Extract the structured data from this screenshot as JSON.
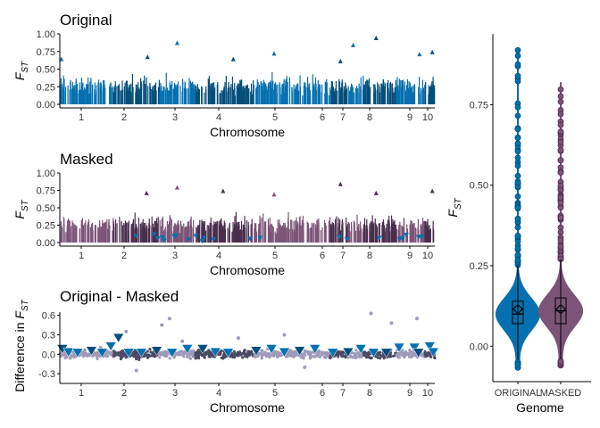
{
  "colors": {
    "original_dark": "#034e7b",
    "original_light": "#0570b0",
    "masked_dark": "#4a2e4d",
    "masked_light": "#7c5478",
    "diff_dark": "#4a4a64",
    "diff_light": "#9f9ab9",
    "axis": "#000000"
  },
  "chart_data": [
    {
      "type": "scatter",
      "panel": "manhattan",
      "title": "Original",
      "xlabel": "Chromosome",
      "ylabel_main": "F",
      "ylabel_sub": "ST",
      "ylim": [
        0,
        1
      ],
      "yticks": [
        "0.00",
        "0.25",
        "0.50",
        "0.75",
        "1.00"
      ],
      "yticks_values": [
        0,
        0.25,
        0.5,
        0.75,
        1.0
      ],
      "chromosomes": [
        "1",
        "2",
        "3",
        "4",
        "5",
        "6",
        "7",
        "8",
        "9",
        "10"
      ],
      "chromosome_bounds": [
        [
          0,
          10.5
        ],
        [
          10.5,
          19.5
        ],
        [
          19.5,
          26.5
        ],
        [
          26.5,
          38
        ],
        [
          38,
          53
        ],
        [
          53,
          56.5
        ],
        [
          56.5,
          59.5
        ],
        [
          59.5,
          66
        ],
        [
          66,
          71.5
        ],
        [
          71.5,
          73.5
        ]
      ],
      "peaks": [
        {
          "chr": "1",
          "pos": 0.3,
          "fst": 0.65
        },
        {
          "chr": "2",
          "pos": 17.2,
          "fst": 0.68
        },
        {
          "chr": "3",
          "pos": 23.0,
          "fst": 0.88
        },
        {
          "chr": "4",
          "pos": 34.0,
          "fst": 0.65
        },
        {
          "chr": "5",
          "pos": 42.0,
          "fst": 0.73
        },
        {
          "chr": "6",
          "pos": 55.0,
          "fst": 0.62
        },
        {
          "chr": "7",
          "pos": 57.5,
          "fst": 0.85
        },
        {
          "chr": "8",
          "pos": 62.0,
          "fst": 0.95
        },
        {
          "chr": "9",
          "pos": 70.5,
          "fst": 0.72
        },
        {
          "chr": "10",
          "pos": 73.0,
          "fst": 0.75
        }
      ]
    },
    {
      "type": "scatter",
      "panel": "manhattan",
      "title": "Masked",
      "xlabel": "Chromosome",
      "ylabel_main": "F",
      "ylabel_sub": "ST",
      "ylim": [
        0,
        1
      ],
      "yticks": [
        "0.00",
        "0.25",
        "0.50",
        "0.75",
        "1.00"
      ],
      "yticks_values": [
        0,
        0.25,
        0.5,
        0.75,
        1.0
      ],
      "chromosomes": [
        "1",
        "2",
        "3",
        "4",
        "5",
        "6",
        "7",
        "8",
        "9",
        "10"
      ],
      "chromosome_bounds": [
        [
          0,
          10.5
        ],
        [
          10.5,
          19.5
        ],
        [
          19.5,
          26.5
        ],
        [
          26.5,
          38
        ],
        [
          38,
          53
        ],
        [
          53,
          56.5
        ],
        [
          56.5,
          59.5
        ],
        [
          59.5,
          66
        ],
        [
          66,
          71.5
        ],
        [
          71.5,
          73.5
        ]
      ],
      "peaks": [
        {
          "chr": "2",
          "pos": 17.0,
          "fst": 0.72
        },
        {
          "chr": "3",
          "pos": 23.0,
          "fst": 0.8
        },
        {
          "chr": "4",
          "pos": 32.0,
          "fst": 0.75
        },
        {
          "chr": "5",
          "pos": 42.0,
          "fst": 0.7
        },
        {
          "chr": "6",
          "pos": 55.0,
          "fst": 0.85
        },
        {
          "chr": "8",
          "pos": 62.0,
          "fst": 0.72
        },
        {
          "chr": "10",
          "pos": 73.0,
          "fst": 0.75
        }
      ]
    },
    {
      "type": "scatter",
      "panel": "difference",
      "title": "Original - Masked",
      "xlabel": "Chromosome",
      "ylabel_main": "Difference in F",
      "ylabel_sub": "ST",
      "ylim": [
        -0.45,
        0.65
      ],
      "yticks": [
        "-0.3",
        "0.0",
        "0.3",
        "0.6"
      ],
      "yticks_values": [
        -0.3,
        0.0,
        0.3,
        0.6
      ],
      "chromosomes": [
        "1",
        "2",
        "3",
        "4",
        "5",
        "6",
        "7",
        "8",
        "9",
        "10"
      ],
      "triangles": [
        {
          "pos": 0.5,
          "value": 0.08
        },
        {
          "pos": 1.7,
          "value": 0.03
        },
        {
          "pos": 3.5,
          "value": 0.02
        },
        {
          "pos": 6.2,
          "value": 0.05
        },
        {
          "pos": 8.3,
          "value": 0.02
        },
        {
          "pos": 10.0,
          "value": 0.12
        },
        {
          "pos": 11.5,
          "value": 0.25
        },
        {
          "pos": 13.5,
          "value": 0.02
        },
        {
          "pos": 16.0,
          "value": 0.02
        },
        {
          "pos": 19.0,
          "value": 0.05
        },
        {
          "pos": 22.0,
          "value": 0.02
        },
        {
          "pos": 25.0,
          "value": 0.08
        },
        {
          "pos": 28.0,
          "value": 0.08
        },
        {
          "pos": 30.5,
          "value": 0.03
        },
        {
          "pos": 33.0,
          "value": 0.02
        },
        {
          "pos": 38.5,
          "value": 0.05
        },
        {
          "pos": 41.5,
          "value": 0.08
        },
        {
          "pos": 44.0,
          "value": 0.03
        },
        {
          "pos": 47.0,
          "value": 0.05
        },
        {
          "pos": 50.0,
          "value": 0.08
        },
        {
          "pos": 53.5,
          "value": 0.02
        },
        {
          "pos": 56.5,
          "value": 0.03
        },
        {
          "pos": 59.0,
          "value": 0.08
        },
        {
          "pos": 61.5,
          "value": 0.02
        },
        {
          "pos": 64.0,
          "value": 0.02
        },
        {
          "pos": 66.5,
          "value": 0.1
        },
        {
          "pos": 69.5,
          "value": 0.1
        },
        {
          "pos": 70.3,
          "value": 0.02
        },
        {
          "pos": 72.5,
          "value": 0.12
        },
        {
          "pos": 73.2,
          "value": 0.03
        }
      ]
    },
    {
      "type": "violin",
      "panel": "distribution",
      "xlabel": "Genome",
      "ylabel_main": "F",
      "ylabel_sub": "ST",
      "ylim": [
        -0.11,
        0.97
      ],
      "yticks": [
        "0.00",
        "0.25",
        "0.50",
        "0.75"
      ],
      "yticks_values": [
        0,
        0.25,
        0.5,
        0.75
      ],
      "categories": [
        "ORIGINAL",
        "MASKED"
      ],
      "series": [
        {
          "name": "ORIGINAL",
          "q1": 0.07,
          "median": 0.1,
          "q3": 0.14,
          "mean": 0.115,
          "min": -0.07,
          "max": 0.92,
          "whisker_low": -0.04,
          "whisker_high": 0.25
        },
        {
          "name": "MASKED",
          "q1": 0.07,
          "median": 0.11,
          "q3": 0.15,
          "mean": 0.115,
          "min": -0.06,
          "max": 0.82,
          "whisker_low": -0.04,
          "whisker_high": 0.27
        }
      ]
    }
  ]
}
